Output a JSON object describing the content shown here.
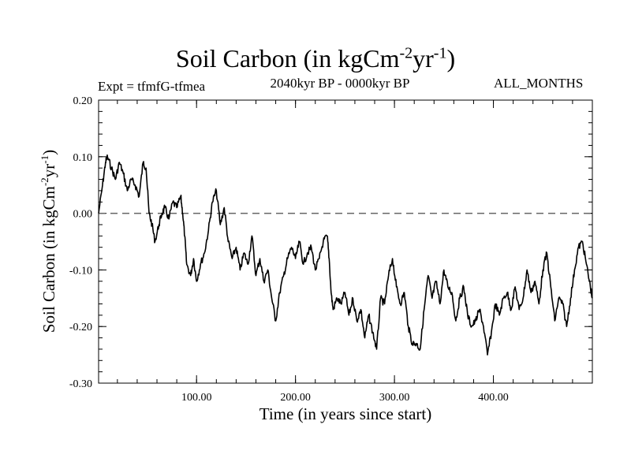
{
  "chart_data": {
    "type": "line",
    "title": {
      "text": "Soil Carbon (in kgCm",
      "sup1": "-2",
      "mid": "yr",
      "sup2": "-1",
      "end": ")"
    },
    "subtitle_left": "Expt = tfmfG-tfmea",
    "subtitle_center": "2040kyr BP - 0000kyr BP",
    "subtitle_right": "ALL_MONTHS",
    "xlabel": "Time (in years since start)",
    "ylabel": {
      "text": "Soil Carbon (in kgCm",
      "sup1": "-2",
      "mid": "yr",
      "sup2": "-1",
      "end": ")"
    },
    "xlim": [
      1,
      500
    ],
    "ylim": [
      -0.3,
      0.2
    ],
    "xticks": [
      100,
      200,
      300,
      400
    ],
    "xtick_labels": [
      "100.00",
      "200.00",
      "300.00",
      "400.00"
    ],
    "yticks": [
      0.2,
      0.1,
      0.0,
      -0.1,
      -0.2,
      -0.3
    ],
    "ytick_labels": [
      "0.20",
      "0.10",
      "0.00",
      "-0.10",
      "-0.20",
      "-0.30"
    ],
    "reference_line": {
      "y": 0.0,
      "style": "dashed"
    },
    "series": [
      {
        "name": "Soil Carbon",
        "color": "#000000",
        "x": [
          1,
          5,
          8,
          10,
          14,
          18,
          22,
          26,
          30,
          34,
          38,
          42,
          46,
          49,
          52,
          55,
          58,
          62,
          65,
          68,
          72,
          76,
          80,
          84,
          86,
          88,
          90,
          94,
          97,
          100,
          104,
          108,
          112,
          116,
          120,
          124,
          128,
          132,
          136,
          140,
          144,
          148,
          152,
          156,
          160,
          164,
          168,
          172,
          176,
          180,
          184,
          188,
          192,
          196,
          200,
          204,
          208,
          212,
          216,
          220,
          224,
          228,
          232,
          234,
          236,
          238,
          242,
          246,
          250,
          254,
          258,
          262,
          266,
          270,
          274,
          278,
          282,
          286,
          290,
          294,
          298,
          302,
          306,
          310,
          314,
          318,
          322,
          326,
          330,
          334,
          338,
          342,
          346,
          350,
          354,
          358,
          362,
          366,
          370,
          374,
          378,
          382,
          386,
          390,
          394,
          398,
          402,
          406,
          410,
          414,
          418,
          422,
          426,
          430,
          434,
          438,
          442,
          446,
          450,
          454,
          458,
          462,
          466,
          470,
          474,
          478,
          482,
          486,
          490,
          494,
          498,
          500
        ],
        "values": [
          0.0,
          0.05,
          0.09,
          0.1,
          0.08,
          0.06,
          0.09,
          0.07,
          0.04,
          0.06,
          0.05,
          0.03,
          0.09,
          0.08,
          0.0,
          -0.02,
          -0.05,
          -0.02,
          0.0,
          0.01,
          -0.01,
          0.02,
          0.01,
          0.03,
          0.0,
          -0.04,
          -0.09,
          -0.11,
          -0.08,
          -0.12,
          -0.09,
          -0.07,
          -0.03,
          0.02,
          0.04,
          -0.02,
          0.01,
          -0.05,
          -0.08,
          -0.06,
          -0.1,
          -0.07,
          -0.09,
          -0.04,
          -0.11,
          -0.08,
          -0.12,
          -0.1,
          -0.15,
          -0.19,
          -0.14,
          -0.11,
          -0.08,
          -0.06,
          -0.08,
          -0.05,
          -0.09,
          -0.07,
          -0.06,
          -0.1,
          -0.08,
          -0.05,
          -0.04,
          -0.08,
          -0.14,
          -0.17,
          -0.15,
          -0.16,
          -0.14,
          -0.18,
          -0.15,
          -0.19,
          -0.17,
          -0.22,
          -0.18,
          -0.21,
          -0.24,
          -0.15,
          -0.16,
          -0.11,
          -0.08,
          -0.13,
          -0.16,
          -0.14,
          -0.2,
          -0.23,
          -0.23,
          -0.24,
          -0.17,
          -0.11,
          -0.15,
          -0.12,
          -0.16,
          -0.1,
          -0.13,
          -0.14,
          -0.19,
          -0.15,
          -0.13,
          -0.18,
          -0.2,
          -0.19,
          -0.17,
          -0.2,
          -0.25,
          -0.21,
          -0.16,
          -0.18,
          -0.15,
          -0.14,
          -0.17,
          -0.13,
          -0.17,
          -0.15,
          -0.1,
          -0.14,
          -0.12,
          -0.16,
          -0.1,
          -0.07,
          -0.13,
          -0.19,
          -0.15,
          -0.16,
          -0.2,
          -0.15,
          -0.1,
          -0.06,
          -0.05,
          -0.09,
          -0.13,
          -0.15
        ]
      }
    ]
  }
}
